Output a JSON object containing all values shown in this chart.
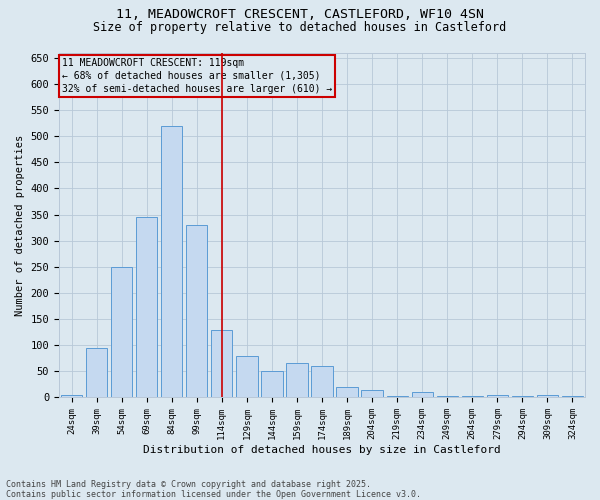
{
  "title_line1": "11, MEADOWCROFT CRESCENT, CASTLEFORD, WF10 4SN",
  "title_line2": "Size of property relative to detached houses in Castleford",
  "xlabel": "Distribution of detached houses by size in Castleford",
  "ylabel": "Number of detached properties",
  "categories": [
    "24sqm",
    "39sqm",
    "54sqm",
    "69sqm",
    "84sqm",
    "99sqm",
    "114sqm",
    "129sqm",
    "144sqm",
    "159sqm",
    "174sqm",
    "189sqm",
    "204sqm",
    "219sqm",
    "234sqm",
    "249sqm",
    "264sqm",
    "279sqm",
    "294sqm",
    "309sqm",
    "324sqm"
  ],
  "values": [
    5,
    95,
    250,
    345,
    520,
    330,
    130,
    80,
    50,
    65,
    60,
    20,
    15,
    2,
    10,
    2,
    2,
    5,
    2,
    5,
    2
  ],
  "bar_color": "#c5d9f0",
  "bar_edge_color": "#5b9bd5",
  "grid_color": "#b8c8d8",
  "bg_color": "#dce8f0",
  "annotation_box_color": "#cc0000",
  "vline_color": "#cc0000",
  "annotation_title": "11 MEADOWCROFT CRESCENT: 119sqm",
  "annotation_line2": "← 68% of detached houses are smaller (1,305)",
  "annotation_line3": "32% of semi-detached houses are larger (610) →",
  "footer_line1": "Contains HM Land Registry data © Crown copyright and database right 2025.",
  "footer_line2": "Contains public sector information licensed under the Open Government Licence v3.0.",
  "ylim": [
    0,
    660
  ],
  "yticks": [
    0,
    50,
    100,
    150,
    200,
    250,
    300,
    350,
    400,
    450,
    500,
    550,
    600,
    650
  ],
  "vline_x_index": 6.0
}
